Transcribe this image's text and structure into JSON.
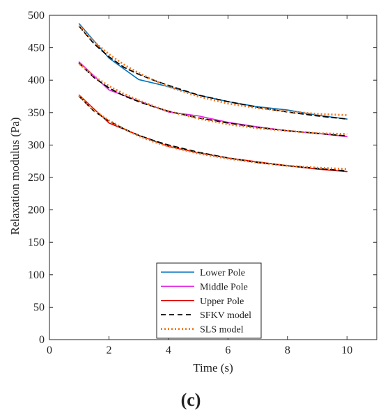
{
  "panel_label": "(c)",
  "chart_data": {
    "type": "line",
    "xlabel": "Time (s)",
    "ylabel": "Relaxation modulus (Pa)",
    "xlim": [
      0,
      11
    ],
    "ylim": [
      0,
      500
    ],
    "xticks": [
      0,
      2,
      4,
      6,
      8,
      10
    ],
    "yticks": [
      0,
      50,
      100,
      150,
      200,
      250,
      300,
      350,
      400,
      450,
      500
    ],
    "legend_position": "bottom-center",
    "series": [
      {
        "name": "Lower Pole",
        "color": "#0072BD",
        "dash": "solid",
        "x": [
          1,
          2,
          3,
          4,
          5,
          6,
          7,
          8,
          9,
          10
        ],
        "y": [
          487,
          434,
          401,
          390,
          377,
          367,
          359,
          354,
          346,
          340
        ]
      },
      {
        "name": "Middle Pole",
        "color": "#E020E0",
        "dash": "solid",
        "x": [
          1,
          2,
          3,
          4,
          5,
          6,
          7,
          8,
          9,
          10
        ],
        "y": [
          428,
          385,
          368,
          351,
          345,
          335,
          328,
          322,
          318,
          313
        ]
      },
      {
        "name": "Upper Pole",
        "color": "#E00000",
        "dash": "solid",
        "x": [
          1,
          2,
          3,
          4,
          5,
          6,
          7,
          8,
          9,
          10
        ],
        "y": [
          377,
          334,
          315,
          298,
          288,
          280,
          274,
          268,
          263,
          259
        ]
      },
      {
        "name": "SFKV model",
        "color": "#000000",
        "dash": "dashed",
        "group": true,
        "curves": [
          {
            "x": [
              1,
              1.5,
              2,
              2.5,
              3,
              3.5,
              4,
              5,
              6,
              7,
              8,
              9,
              10
            ],
            "y": [
              483,
              456,
              436,
              420,
              409,
              400,
              392,
              377,
              367,
              358,
              351,
              345,
              340
            ]
          },
          {
            "x": [
              1,
              1.5,
              2,
              2.5,
              3,
              3.5,
              4,
              5,
              6,
              7,
              8,
              9,
              10
            ],
            "y": [
              426,
              404,
              388,
              376,
              367,
              359,
              352,
              342,
              334,
              327,
              322,
              318,
              314
            ]
          },
          {
            "x": [
              1,
              1.5,
              2,
              2.5,
              3,
              3.5,
              4,
              5,
              6,
              7,
              8,
              9,
              10
            ],
            "y": [
              375,
              352,
              337,
              325,
              315,
              307,
              300,
              289,
              280,
              273,
              268,
              264,
              260
            ]
          }
        ]
      },
      {
        "name": "SLS model",
        "color": "#F5761A",
        "dash": "dotted",
        "group": true,
        "curves": [
          {
            "x": [
              1,
              1.5,
              2,
              2.5,
              3,
              3.5,
              4,
              5,
              6,
              7,
              8,
              9,
              10
            ],
            "y": [
              484,
              459,
              440,
              424,
              411,
              400,
              390,
              375,
              364,
              357,
              352,
              348,
              346
            ]
          },
          {
            "x": [
              1,
              1.5,
              2,
              2.5,
              3,
              3.5,
              4,
              5,
              6,
              7,
              8,
              9,
              10
            ],
            "y": [
              425,
              406,
              391,
              379,
              369,
              360,
              352,
              341,
              332,
              326,
              322,
              318,
              317
            ]
          },
          {
            "x": [
              1,
              1.5,
              2,
              2.5,
              3,
              3.5,
              4,
              5,
              6,
              7,
              8,
              9,
              10
            ],
            "y": [
              376,
              353,
              338,
              325,
              314,
              305,
              298,
              287,
              279,
              273,
              268,
              265,
              263
            ]
          }
        ]
      }
    ]
  }
}
